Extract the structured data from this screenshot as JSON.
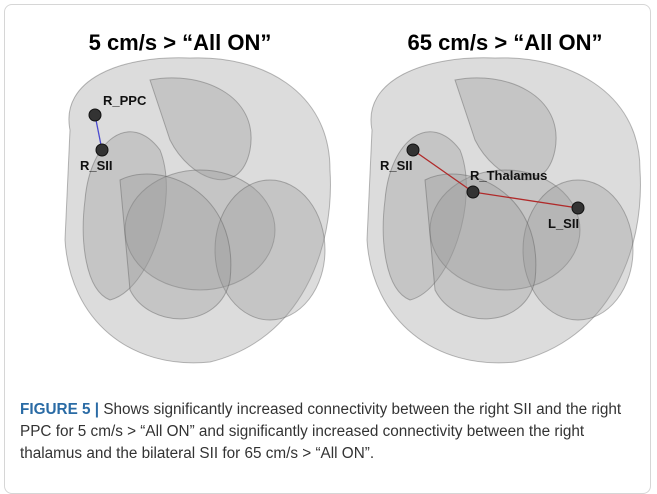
{
  "panels": [
    {
      "title": "5 cm/s > “All ON”",
      "nodes": [
        {
          "label": "R_PPC"
        },
        {
          "label": "R_SII"
        }
      ]
    },
    {
      "title": "65 cm/s > “All ON”",
      "nodes": [
        {
          "label": "R_SII"
        },
        {
          "label": "R_Thalamus"
        },
        {
          "label": "L_SII"
        }
      ]
    }
  ],
  "caption": {
    "label": "FIGURE 5 |",
    "text": "Shows significantly increased connectivity between the right SII and the right PPC for 5 cm/s > “All ON” and significantly increased connectivity between the right thalamus and the bilateral SII for 65 cm/s > “All ON”."
  }
}
